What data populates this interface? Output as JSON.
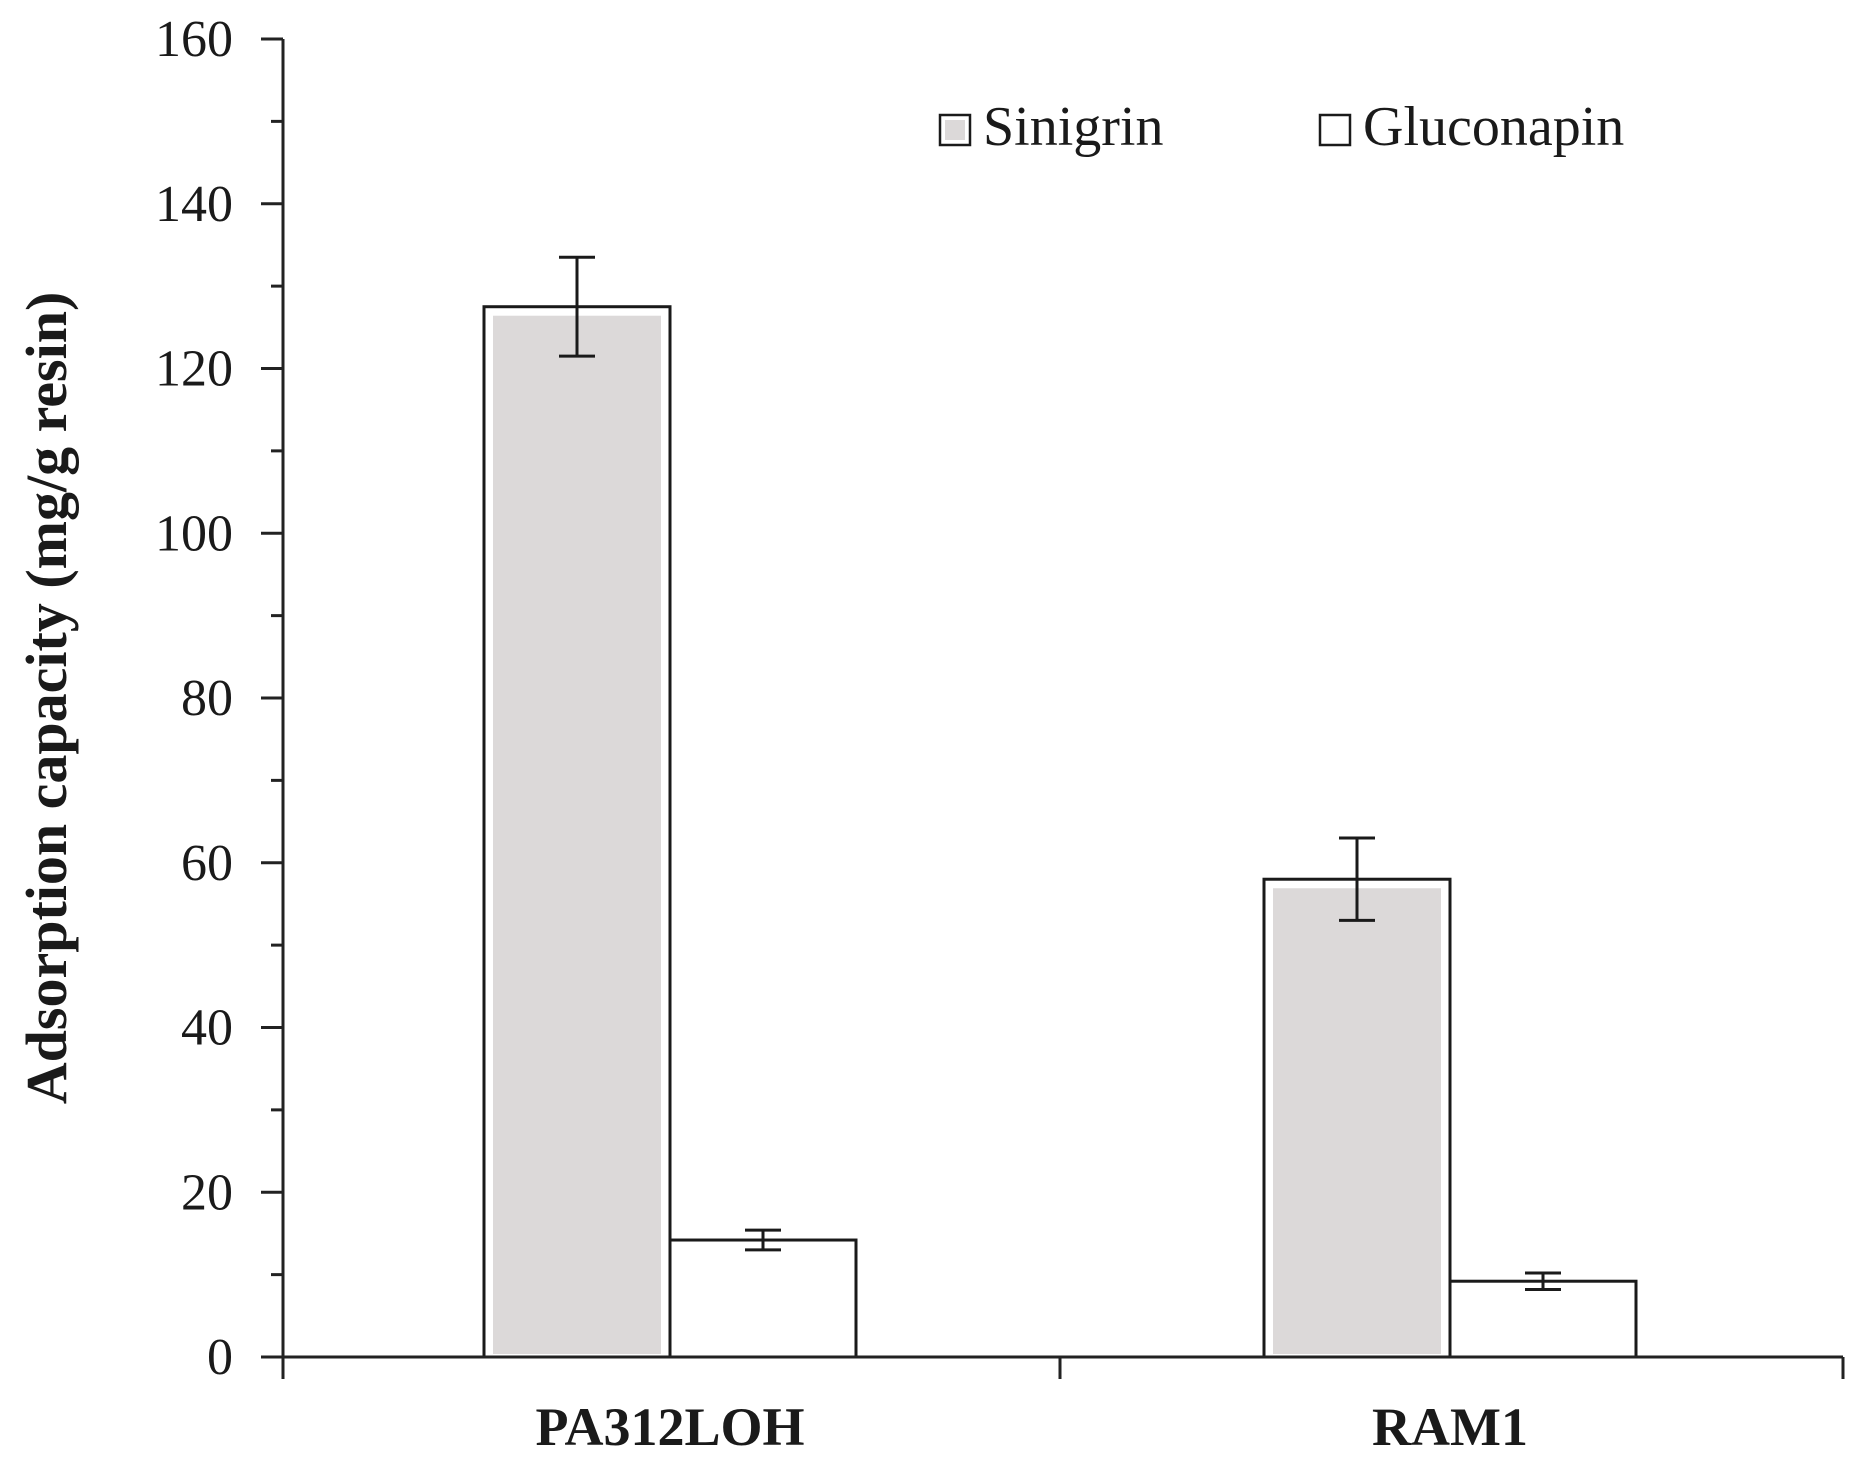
{
  "chart_data": {
    "type": "bar",
    "title": "",
    "xlabel": "",
    "ylabel": "Adsorption capacity (mg/g resin)",
    "categories": [
      "PA312LOH",
      "RAM1"
    ],
    "series": [
      {
        "name": "Sinigrin",
        "color": "#dcd9d9",
        "values": [
          127.5,
          58.0
        ],
        "errors": [
          6.0,
          5.0
        ]
      },
      {
        "name": "Gluconapin",
        "color": "#ffffff",
        "values": [
          14.2,
          9.2
        ],
        "errors": [
          1.2,
          1.0
        ]
      }
    ],
    "ylim": [
      0,
      160
    ],
    "yticks": [
      0,
      20,
      40,
      60,
      80,
      100,
      120,
      140,
      160
    ],
    "ytick_labels": [
      "0",
      "20",
      "40",
      "60",
      "80",
      "100",
      "120",
      "140",
      "160"
    ],
    "grid": false,
    "legend_position": "top-right"
  }
}
